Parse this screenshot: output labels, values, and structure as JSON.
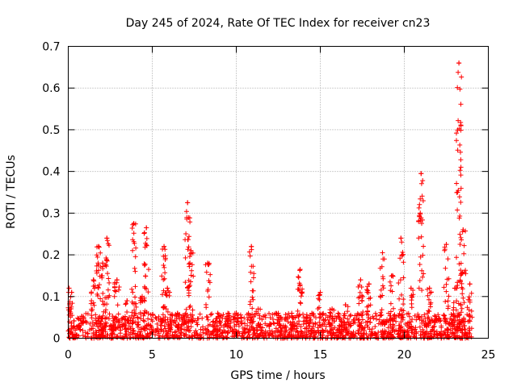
{
  "chart_data": {
    "type": "scatter",
    "title": "Day 245 of 2024, Rate Of TEC Index for receiver cn23",
    "xlabel": "GPS time / hours",
    "ylabel": "ROTI / TECUs",
    "xlim": [
      0,
      25
    ],
    "ylim": [
      0,
      0.7
    ],
    "xticks": [
      "0",
      "5",
      "10",
      "15",
      "20",
      "25"
    ],
    "yticks": [
      "0",
      "0.1",
      "0.2",
      "0.3",
      "0.4",
      "0.5",
      "0.6",
      "0.7"
    ],
    "grid": true,
    "marker": "+",
    "color": "#ff0000",
    "series": [
      {
        "name": "ROTI",
        "peaks": [
          {
            "x": 0.05,
            "y": 0.12
          },
          {
            "x": 0.2,
            "y": 0.11
          },
          {
            "x": 1.5,
            "y": 0.14
          },
          {
            "x": 1.8,
            "y": 0.22
          },
          {
            "x": 2.05,
            "y": 0.18
          },
          {
            "x": 2.3,
            "y": 0.24
          },
          {
            "x": 2.9,
            "y": 0.14
          },
          {
            "x": 3.5,
            "y": 0.09
          },
          {
            "x": 3.9,
            "y": 0.275
          },
          {
            "x": 4.4,
            "y": 0.1
          },
          {
            "x": 4.65,
            "y": 0.265
          },
          {
            "x": 5.7,
            "y": 0.22
          },
          {
            "x": 5.9,
            "y": 0.12
          },
          {
            "x": 6.5,
            "y": 0.06
          },
          {
            "x": 7.1,
            "y": 0.325
          },
          {
            "x": 7.3,
            "y": 0.21
          },
          {
            "x": 8.3,
            "y": 0.18
          },
          {
            "x": 8.9,
            "y": 0.06
          },
          {
            "x": 9.5,
            "y": 0.06
          },
          {
            "x": 10.0,
            "y": 0.06
          },
          {
            "x": 10.9,
            "y": 0.22
          },
          {
            "x": 11.3,
            "y": 0.07
          },
          {
            "x": 12.5,
            "y": 0.06
          },
          {
            "x": 13.3,
            "y": 0.06
          },
          {
            "x": 13.8,
            "y": 0.165
          },
          {
            "x": 14.5,
            "y": 0.06
          },
          {
            "x": 15.0,
            "y": 0.11
          },
          {
            "x": 15.7,
            "y": 0.07
          },
          {
            "x": 16.5,
            "y": 0.08
          },
          {
            "x": 17.4,
            "y": 0.14
          },
          {
            "x": 17.9,
            "y": 0.13
          },
          {
            "x": 18.7,
            "y": 0.205
          },
          {
            "x": 19.3,
            "y": 0.15
          },
          {
            "x": 19.8,
            "y": 0.24
          },
          {
            "x": 20.4,
            "y": 0.12
          },
          {
            "x": 21.0,
            "y": 0.395
          },
          {
            "x": 21.5,
            "y": 0.12
          },
          {
            "x": 22.5,
            "y": 0.225
          },
          {
            "x": 23.0,
            "y": 0.12
          },
          {
            "x": 23.25,
            "y": 0.66
          },
          {
            "x": 23.5,
            "y": 0.26
          },
          {
            "x": 23.9,
            "y": 0.13
          }
        ],
        "baseline": {
          "x_start": 0,
          "x_end": 24,
          "typical_max": 0.06,
          "typical_min": 0.0
        }
      }
    ]
  }
}
